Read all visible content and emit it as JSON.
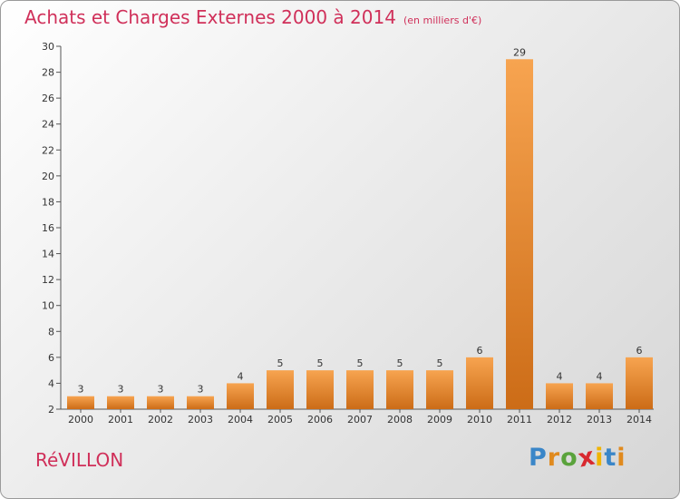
{
  "header": {
    "title": "Achats et Charges Externes 2000 à 2014",
    "subtitle": "(en milliers d'€)"
  },
  "commune": "RéVILLON",
  "logo": {
    "letters": [
      "P",
      "r",
      "o",
      "x",
      "i",
      "t",
      "i"
    ],
    "colors": [
      "#3a86c8",
      "#e08a1e",
      "#5aa33c",
      "#d8292f",
      "#f0b400",
      "#3a86c8",
      "#e08a1e"
    ]
  },
  "colors": {
    "bar_light": "#f7a450",
    "bar_dark": "#cc6c17",
    "brand": "#d0305a"
  },
  "chart_data": {
    "type": "bar",
    "categories": [
      "2000",
      "2001",
      "2002",
      "2003",
      "2004",
      "2005",
      "2006",
      "2007",
      "2008",
      "2009",
      "2010",
      "2011",
      "2012",
      "2013",
      "2014"
    ],
    "values": [
      3,
      3,
      3,
      3,
      4,
      5,
      5,
      5,
      5,
      5,
      6,
      29,
      4,
      4,
      6
    ],
    "title": "Achats et Charges Externes 2000 à 2014",
    "ylim": [
      2,
      30
    ],
    "yticks": [
      2,
      4,
      6,
      8,
      10,
      12,
      14,
      16,
      18,
      20,
      22,
      24,
      26,
      28,
      30
    ],
    "data_labels": true,
    "grid": false
  }
}
